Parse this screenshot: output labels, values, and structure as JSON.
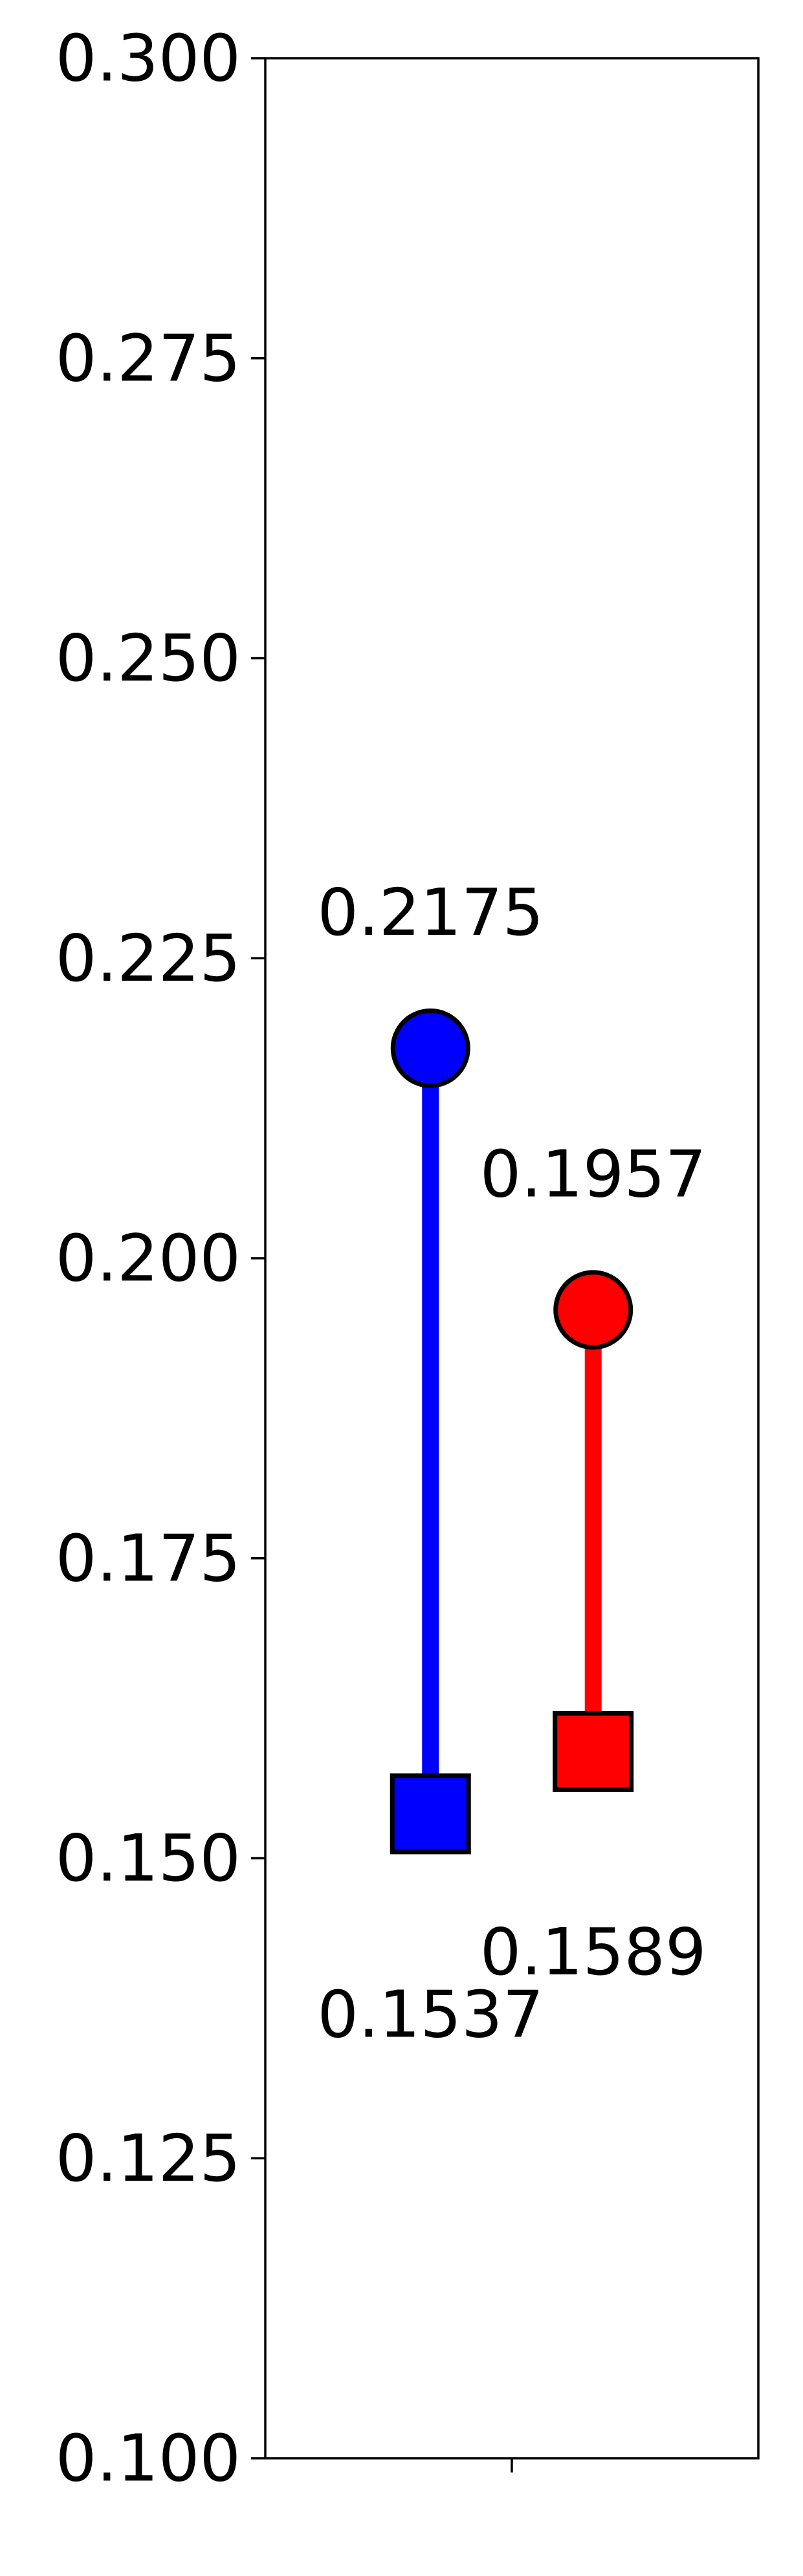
{
  "chart_data": {
    "type": "dumbbell",
    "title": "",
    "xlabel": "",
    "ylabel": "",
    "ylim": [
      0.1,
      0.3
    ],
    "yticks": [
      {
        "value": 0.1,
        "label": "0.100"
      },
      {
        "value": 0.125,
        "label": "0.125"
      },
      {
        "value": 0.15,
        "label": "0.150"
      },
      {
        "value": 0.175,
        "label": "0.175"
      },
      {
        "value": 0.2,
        "label": "0.200"
      },
      {
        "value": 0.225,
        "label": "0.225"
      },
      {
        "value": 0.25,
        "label": "0.250"
      },
      {
        "value": 0.275,
        "label": "0.275"
      },
      {
        "value": 0.3,
        "label": "0.300"
      }
    ],
    "xticks": [
      0
    ],
    "xlim": [
      -1,
      1
    ],
    "grid": false,
    "series": [
      {
        "color": "#0000ff",
        "x": -0.33,
        "start": {
          "value": 0.2175,
          "marker": "circle",
          "label": "0.2175"
        },
        "end": {
          "value": 0.1537,
          "marker": "square",
          "label": "0.1537"
        }
      },
      {
        "color": "#ff0000",
        "x": 0.33,
        "start": {
          "value": 0.1957,
          "marker": "circle",
          "label": "0.1957"
        },
        "end": {
          "value": 0.1589,
          "marker": "square",
          "label": "0.1589"
        }
      }
    ]
  }
}
